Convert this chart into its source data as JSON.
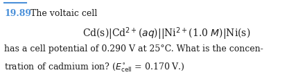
{
  "bg_color": "#ffffff",
  "number_color": "#4a90d9",
  "text_color": "#1a1a1a",
  "overline_color": "#4a90d9",
  "number_text": "19.89",
  "title_text": "The voltaic cell",
  "line2_text": "Cd(s)|Cd$^{2+}$($aq$)||Ni$^{2+}$(1.0 $M$)|Ni(s)",
  "line3_text": "has a cell potential of 0.290 V at 25°C. What is the concen-",
  "line4_text": "tration of cadmium ion? ($E^{\\circ}_{\\mathrm{cell}}$ = 0.170 V.)",
  "font_size_main": 9.0,
  "font_size_eq": 10.0,
  "fig_width": 4.4,
  "fig_height": 1.08,
  "dpi": 100
}
